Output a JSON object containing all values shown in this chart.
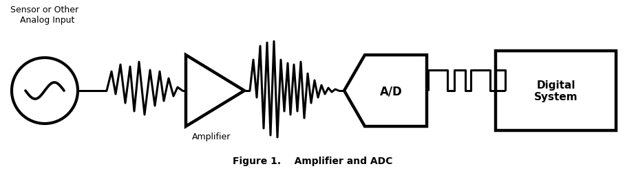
{
  "title": "Figure 1.    Amplifier and ADC",
  "title_fontsize": 10,
  "background_color": "#ffffff",
  "line_color": "#000000",
  "line_width": 2.2,
  "amplifier_label": "Amplifier",
  "adc_label": "A/D",
  "digital_label": "Digital\nSystem",
  "sensor_label": "Sensor or Other\n  Analog Input",
  "figsize": [
    9.08,
    2.53
  ],
  "dpi": 100
}
